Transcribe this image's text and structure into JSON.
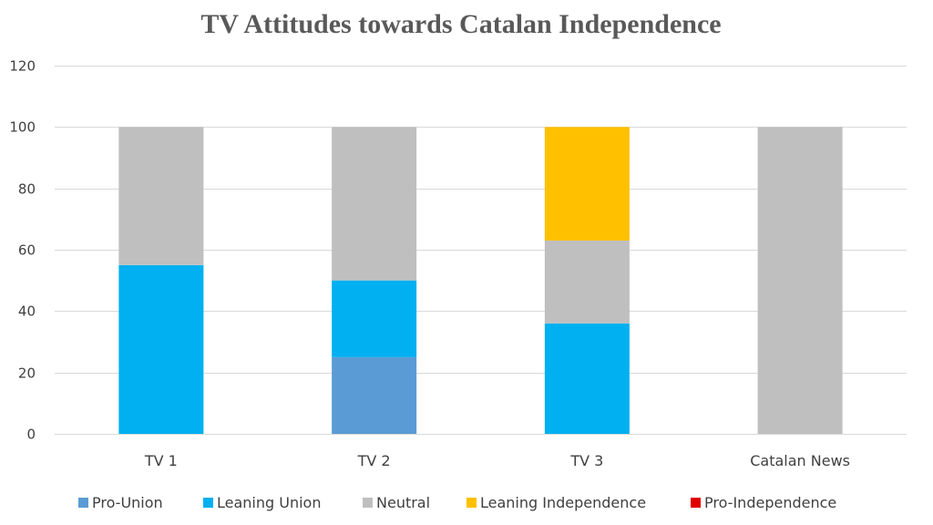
{
  "chart_data": {
    "type": "bar",
    "stacked": true,
    "title": "TV Attitudes towards Catalan Independence",
    "xlabel": "",
    "ylabel": "",
    "ylim": [
      0,
      120
    ],
    "yticks": [
      0,
      20,
      40,
      60,
      80,
      100,
      120
    ],
    "grid": true,
    "legend_position": "bottom",
    "categories": [
      "TV 1",
      "TV 2",
      "TV 3",
      "Catalan News"
    ],
    "series": [
      {
        "name": "Pro-Union",
        "color": "#5b9bd5",
        "values": [
          0,
          25,
          0,
          0
        ]
      },
      {
        "name": "Leaning Union",
        "color": "#00b0f0",
        "values": [
          55,
          25,
          36,
          0
        ]
      },
      {
        "name": "Neutral",
        "color": "#bfbfbf",
        "values": [
          45,
          50,
          27,
          100
        ]
      },
      {
        "name": "Leaning Independence",
        "color": "#ffc000",
        "values": [
          0,
          0,
          37,
          0
        ]
      },
      {
        "name": "Pro-Independence",
        "color": "#e00000",
        "values": [
          0,
          0,
          0,
          0
        ]
      }
    ]
  }
}
